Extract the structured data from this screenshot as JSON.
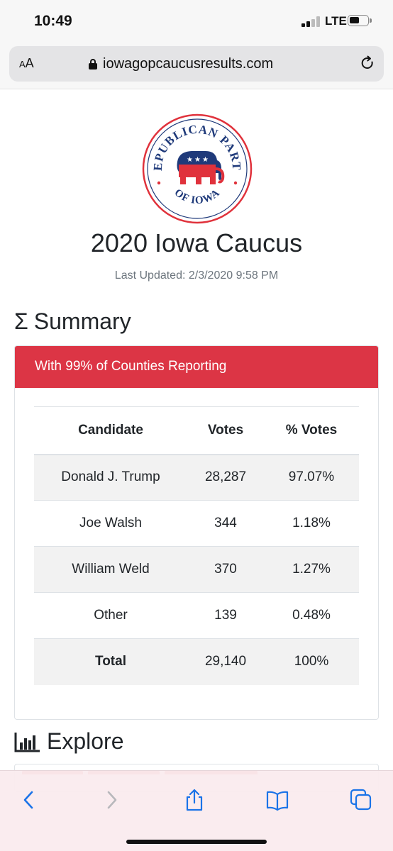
{
  "status": {
    "time": "10:49",
    "network": "LTE"
  },
  "browser": {
    "text_size_label": "AA",
    "url": "iowagopcaucusresults.com"
  },
  "logo": {
    "top_text": "REPUBLICAN PARTY",
    "bottom_text": "OF IOWA"
  },
  "page": {
    "title": "2020 Iowa Caucus",
    "last_updated": "Last Updated: 2/3/2020 9:58 PM"
  },
  "summary": {
    "heading": "Summary",
    "heading_icon": "sigma-icon",
    "banner": "With 99% of Counties Reporting",
    "columns": [
      "Candidate",
      "Votes",
      "% Votes"
    ],
    "rows": [
      {
        "candidate": "Donald J. Trump",
        "votes": "28,287",
        "pct": "97.07%"
      },
      {
        "candidate": "Joe Walsh",
        "votes": "344",
        "pct": "1.18%"
      },
      {
        "candidate": "William Weld",
        "votes": "370",
        "pct": "1.27%"
      },
      {
        "candidate": "Other",
        "votes": "139",
        "pct": "0.48%"
      },
      {
        "candidate": "Total",
        "votes": "29,140",
        "pct": "100%"
      }
    ]
  },
  "explore": {
    "heading": "Explore",
    "heading_icon": "bar-chart-icon"
  },
  "toolbar": {
    "icons": [
      "back-icon",
      "forward-icon",
      "share-icon",
      "bookmarks-icon",
      "tabs-icon"
    ]
  },
  "colors": {
    "accent": "#dc3545",
    "ios_blue": "#1a73e8",
    "text": "#212529",
    "muted": "#6c757d"
  }
}
